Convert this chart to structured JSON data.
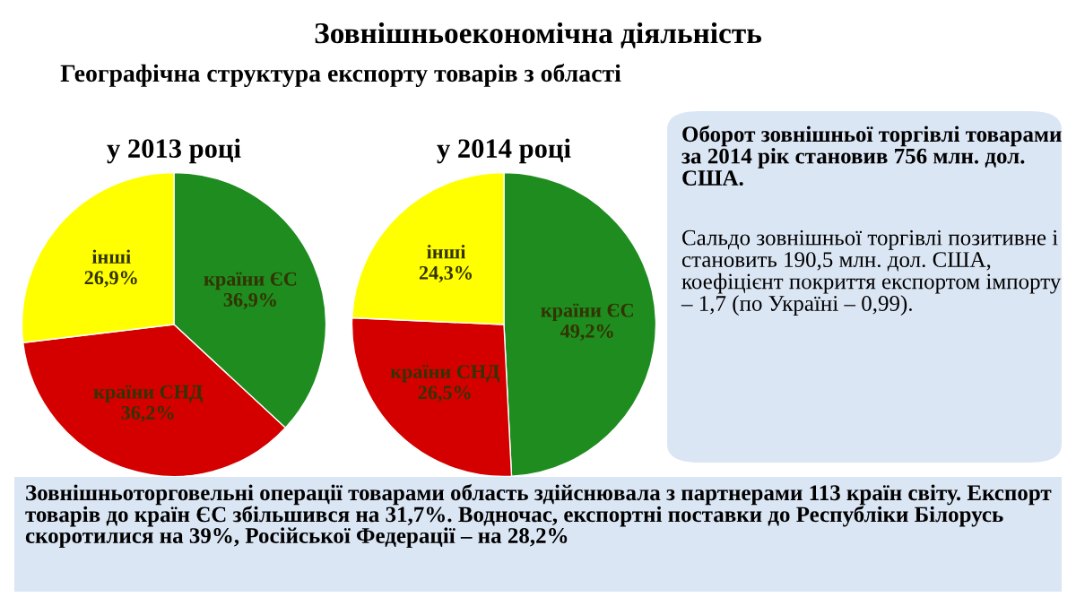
{
  "chart_data": [
    {
      "type": "pie",
      "title": "у 2013 році",
      "categories": [
        "країни ЄС",
        "країни СНД",
        "інші"
      ],
      "values": [
        36.9,
        36.2,
        26.9
      ],
      "value_labels": [
        "36,9%",
        "36,2%",
        "26,9%"
      ],
      "colors": [
        "#1e8c1e",
        "#d40000",
        "#ffff00"
      ]
    },
    {
      "type": "pie",
      "title": "у 2014 році",
      "categories": [
        "країни ЄС",
        "країни СНД",
        "інші"
      ],
      "values": [
        49.2,
        26.5,
        24.3
      ],
      "value_labels": [
        "49,2%",
        "26,5%",
        "24,3%"
      ],
      "colors": [
        "#1e8c1e",
        "#d40000",
        "#ffff00"
      ]
    },
    {
      "type": "other",
      "title": "Зовнішньоекономічна діяльність",
      "subtitle": "Географічна структура експорту товарів з області",
      "annotations": [
        "Оборот зовнішньої торгівлі товарами за 2014 рік становив 756 млн. дол. США.",
        "Сальдо зовнішньої торгівлі позитивне і становить 190,5 млн. дол. США, коефіцієнт покриття експортом імпорту – 1,7 (по Україні – 0,99).",
        "Зовнішньоторговельні операції товарами область здійснювала з партнерами 113 країн світу. Експорт товарів до країн ЄС збільшився на 31,7%. Водночас, експортні поставки до Республіки Білорусь скоротилися на 39%, Російської Федерації – на 28,2%"
      ]
    }
  ]
}
